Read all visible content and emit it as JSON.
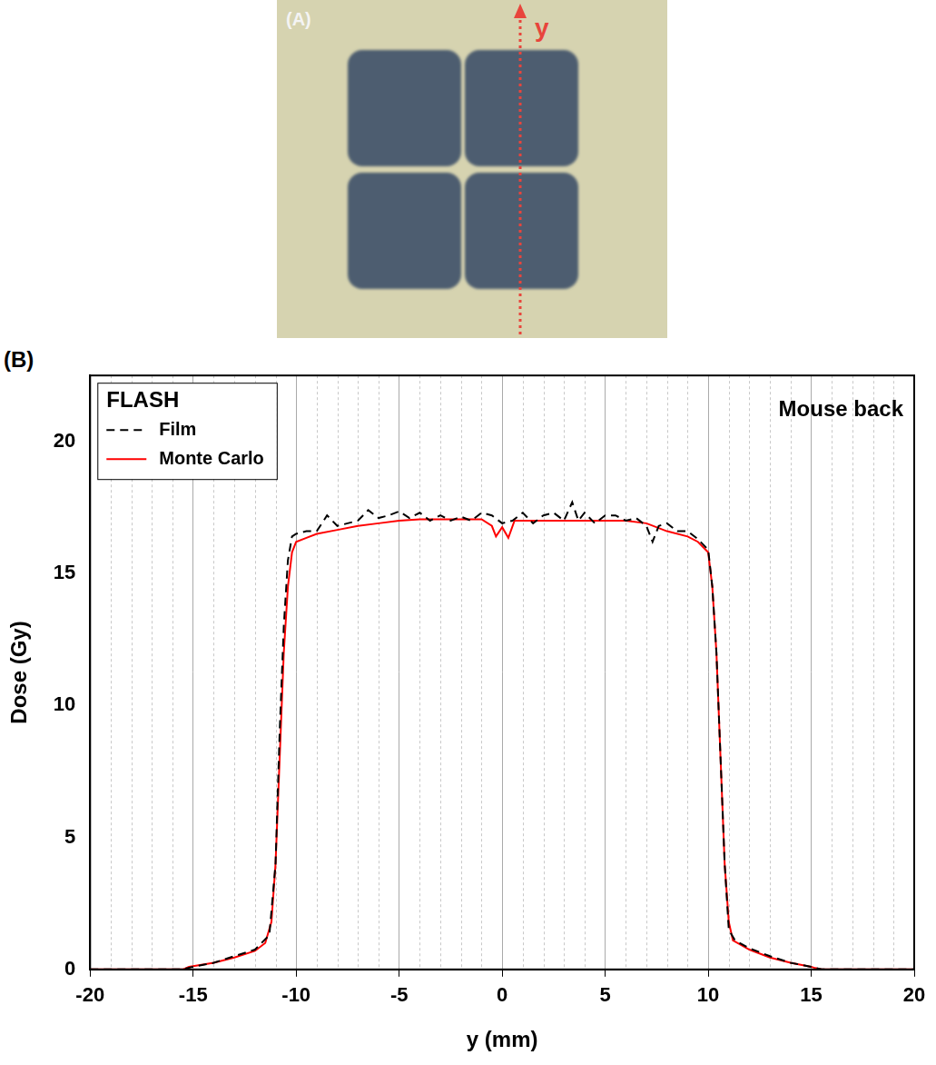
{
  "panel_a": {
    "panel_label": "(A)",
    "arrow_label": "y"
  },
  "chart_data": {
    "type": "line",
    "panel_label": "(B)",
    "x_label": "y (mm)",
    "y_label": "Dose (Gy)",
    "legend_title": "FLASH",
    "legend": "top-left",
    "annotations": [
      {
        "text": "Mouse back"
      }
    ],
    "xlim": [
      -20,
      20
    ],
    "xticks": [
      -20,
      -15,
      -10,
      -5,
      0,
      5,
      10,
      15,
      20
    ],
    "ylim": [
      0,
      22.5
    ],
    "yticks": [
      0,
      5,
      10,
      15,
      20
    ],
    "grid": true,
    "series": [
      {
        "name": "Film",
        "color": "#000000",
        "line_style": "dashed",
        "x": [
          -20,
          -15.5,
          -15,
          -14,
          -13,
          -12,
          -11.3,
          -11,
          -10.8,
          -10.6,
          -10.4,
          -10.2,
          -10,
          -9.5,
          -9,
          -8.5,
          -8,
          -7.5,
          -7,
          -6.5,
          -6,
          -5.5,
          -5,
          -4.5,
          -4,
          -3.5,
          -3,
          -2.5,
          -2,
          -1.5,
          -1,
          -0.5,
          0,
          0.5,
          1,
          1.5,
          2,
          2.5,
          3,
          3.4,
          3.7,
          4,
          4.5,
          5,
          5.5,
          6,
          6.5,
          7,
          7.3,
          7.6,
          8,
          8.5,
          9,
          9.5,
          10,
          10.2,
          10.4,
          10.6,
          10.8,
          11,
          11.3,
          12,
          13,
          14,
          15,
          15.5,
          20
        ],
        "values": [
          0,
          0,
          0.1,
          0.25,
          0.5,
          0.75,
          1.3,
          4,
          9,
          13,
          15.5,
          16.4,
          16.5,
          16.6,
          16.6,
          17.2,
          16.8,
          16.9,
          17.0,
          17.4,
          17.1,
          17.2,
          17.35,
          17.1,
          17.3,
          17.0,
          17.2,
          17.0,
          17.15,
          17.0,
          17.3,
          17.2,
          16.9,
          17.0,
          17.3,
          16.9,
          17.2,
          17.3,
          17.0,
          17.7,
          17.0,
          17.3,
          16.9,
          17.2,
          17.2,
          17.0,
          17.1,
          16.8,
          16.2,
          16.8,
          16.9,
          16.6,
          16.6,
          16.3,
          15.9,
          14.5,
          12,
          8,
          4,
          1.5,
          1.1,
          0.8,
          0.5,
          0.25,
          0.1,
          0,
          0
        ]
      },
      {
        "name": "Monte Carlo",
        "color": "#ff0000",
        "line_style": "solid",
        "x": [
          -20,
          -15.5,
          -15.2,
          -14,
          -13,
          -12,
          -11.5,
          -11.2,
          -11,
          -10.8,
          -10.6,
          -10.4,
          -10.2,
          -10,
          -9.5,
          -9,
          -8,
          -7,
          -6,
          -5,
          -4,
          -3,
          -2,
          -1,
          -0.5,
          -0.3,
          0,
          0.3,
          0.6,
          1,
          2,
          3,
          4,
          5,
          6,
          7,
          8,
          9,
          9.5,
          10,
          10.2,
          10.4,
          10.6,
          10.8,
          11,
          11.2,
          12,
          13,
          14,
          15,
          15.2,
          15.5,
          20
        ],
        "values": [
          0,
          0,
          0.1,
          0.25,
          0.45,
          0.7,
          1.0,
          1.8,
          4,
          8,
          12,
          14.5,
          15.8,
          16.2,
          16.35,
          16.5,
          16.65,
          16.8,
          16.9,
          17.0,
          17.05,
          17.05,
          17.05,
          17.05,
          16.8,
          16.4,
          16.75,
          16.35,
          17.0,
          17.0,
          17.0,
          17.0,
          17.0,
          17.0,
          17.0,
          16.9,
          16.6,
          16.4,
          16.2,
          15.8,
          14.5,
          12,
          8,
          4,
          1.8,
          1.1,
          0.75,
          0.45,
          0.25,
          0.1,
          0.05,
          0,
          0
        ]
      }
    ]
  }
}
